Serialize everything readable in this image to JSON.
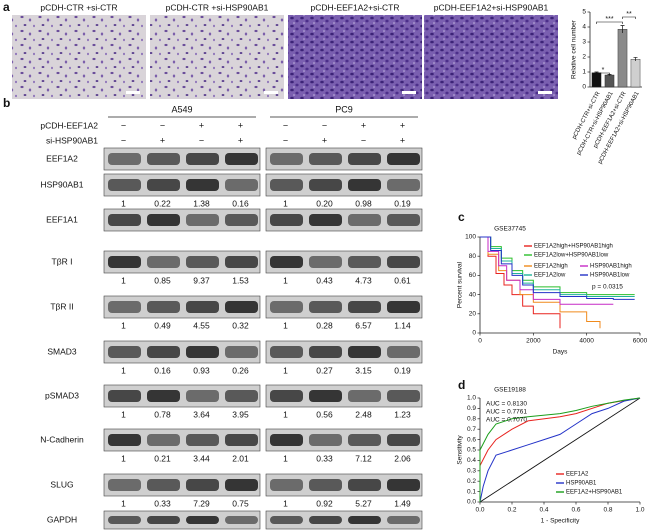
{
  "panel_labels": [
    "a",
    "b",
    "c",
    "d"
  ],
  "images": [
    {
      "label": "pCDH-CTR +si-CTR"
    },
    {
      "label": "pCDH-CTR +si-HSP90AB1"
    },
    {
      "label": "pCDH-EEF1A2+si-CTR"
    },
    {
      "label": "pCDH-EEF1A2+si-HSP90AB1"
    }
  ],
  "blots": {
    "cell_lines": [
      "A549",
      "PC9"
    ],
    "conditions": [
      {
        "label": "pCDH-EEF1A2",
        "signs": [
          "−",
          "−",
          "+",
          "+"
        ]
      },
      {
        "label": "si-HSP90AB1",
        "signs": [
          "−",
          "+",
          "−",
          "+"
        ]
      }
    ],
    "rows": [
      {
        "label": "EEF1A2"
      },
      {
        "label": "HSP90AB1",
        "quant": [
          [
            "1",
            "0.22",
            "1.38",
            "0.16"
          ],
          [
            "1",
            "0.20",
            "0.98",
            "0.19"
          ]
        ]
      },
      {
        "label": "EEF1A1"
      },
      {
        "label": "TβR I",
        "quant": [
          [
            "1",
            "0.85",
            "9.37",
            "1.53"
          ],
          [
            "1",
            "0.43",
            "4.73",
            "0.61"
          ]
        ]
      },
      {
        "label": "TβR II",
        "quant": [
          [
            "1",
            "0.49",
            "4.55",
            "0.32"
          ],
          [
            "1",
            "0.28",
            "6.57",
            "1.14"
          ]
        ]
      },
      {
        "label": "SMAD3",
        "quant": [
          [
            "1",
            "0.16",
            "0.93",
            "0.26"
          ],
          [
            "1",
            "0.27",
            "3.15",
            "0.19"
          ]
        ]
      },
      {
        "label": "pSMAD3",
        "quant": [
          [
            "1",
            "0.78",
            "3.64",
            "3.95"
          ],
          [
            "1",
            "0.56",
            "2.48",
            "1.23"
          ]
        ]
      },
      {
        "label": "N-Cadherin",
        "quant": [
          [
            "1",
            "0.21",
            "3.44",
            "2.01"
          ],
          [
            "1",
            "0.33",
            "7.12",
            "2.06"
          ]
        ]
      },
      {
        "label": "SLUG",
        "quant": [
          [
            "1",
            "0.33",
            "7.29",
            "0.75"
          ],
          [
            "1",
            "0.92",
            "5.27",
            "1.49"
          ]
        ]
      },
      {
        "label": "GAPDH"
      }
    ]
  },
  "chart_data": [
    {
      "type": "bar",
      "ylabel": "Relative cell number",
      "categories": [
        "pCDH-CTR+si-CTR",
        "pCDH-CTR+si-HSP90AB1",
        "pCDH-EEF1A2+si-CTR",
        "pCDH-EEF1A2+si-HSP90AB1"
      ],
      "values": [
        0.95,
        0.8,
        3.85,
        1.85
      ],
      "errors": [
        0.05,
        0.04,
        0.25,
        0.12
      ],
      "colors": [
        "#111111",
        "#555555",
        "#8a8a8a",
        "#cfcfcf"
      ],
      "ylim": [
        0,
        5
      ],
      "yticks": [
        0,
        1,
        2,
        3,
        4,
        5
      ],
      "annotations": [
        "*",
        "***",
        "**"
      ]
    },
    {
      "type": "line",
      "step": true,
      "title": "GSE37745",
      "xlabel": "Days",
      "ylabel": "Percent survival",
      "xlim": [
        0,
        6000
      ],
      "xticks": [
        0,
        2000,
        4000,
        6000
      ],
      "ylim": [
        0,
        100
      ],
      "yticks": [
        0,
        20,
        40,
        60,
        80,
        100
      ],
      "legend": "top-right",
      "annotations": [
        {
          "text": "p = 0.0315",
          "color": "#111111"
        }
      ],
      "series": [
        {
          "name": "EEF1A2high+HSP90AB1high",
          "color": "#e8231f",
          "x": [
            0,
            300,
            600,
            900,
            1200,
            1600,
            2000,
            2400,
            3000
          ],
          "values": [
            100,
            80,
            62,
            50,
            40,
            28,
            20,
            20,
            5
          ]
        },
        {
          "name": "EEF1A2low+HSP90AB1low",
          "color": "#2bbf2b",
          "x": [
            0,
            400,
            800,
            1200,
            1600,
            2000,
            3000,
            4000,
            5000,
            5800
          ],
          "values": [
            100,
            90,
            78,
            65,
            55,
            48,
            42,
            40,
            40,
            40
          ]
        },
        {
          "name": "EEF1A2high",
          "color": "#f08a1c",
          "x": [
            0,
            300,
            700,
            1000,
            1500,
            2000,
            3000,
            4000,
            4500
          ],
          "values": [
            100,
            82,
            65,
            55,
            40,
            32,
            22,
            12,
            5
          ]
        },
        {
          "name": "HSP90AB1high",
          "color": "#c62ac6",
          "x": [
            0,
            300,
            700,
            1000,
            1500,
            2000,
            3000,
            4000,
            5000
          ],
          "values": [
            100,
            85,
            70,
            55,
            45,
            35,
            30,
            30,
            30
          ]
        },
        {
          "name": "EEF1A2low",
          "color": "#1fb39a",
          "x": [
            0,
            400,
            800,
            1200,
            1600,
            2000,
            3000,
            4000,
            5000,
            5800
          ],
          "values": [
            100,
            88,
            75,
            62,
            52,
            45,
            40,
            38,
            38,
            38
          ]
        },
        {
          "name": "HSP90AB1low",
          "color": "#2433c8",
          "x": [
            0,
            400,
            800,
            1200,
            1600,
            2000,
            3000,
            4000,
            5000,
            5800
          ],
          "values": [
            100,
            86,
            72,
            60,
            50,
            42,
            38,
            36,
            35,
            35
          ]
        }
      ]
    },
    {
      "type": "line",
      "title": "GSE19188",
      "xlabel": "1 - Specificity",
      "ylabel": "Sensitivity",
      "reference_line": true,
      "xlim": [
        0,
        1
      ],
      "xticks": [
        {
          "value": 0,
          "label": "0.0"
        },
        0.2,
        0.4,
        0.6,
        0.8,
        {
          "value": 1,
          "label": "1.0"
        }
      ],
      "ylim": [
        0,
        1
      ],
      "yticks": [
        {
          "value": 0,
          "label": "0.0"
        },
        0.1,
        0.2,
        0.3,
        0.4,
        0.5,
        0.6,
        0.7,
        0.8,
        0.9,
        {
          "value": 1,
          "label": "1.0"
        }
      ],
      "legend": "bottom-right",
      "annotations": [
        {
          "text": "AUC = 0.8130",
          "color": "#1a9e1a"
        },
        {
          "text": "AUC = 0.7761",
          "color": "#e8231f"
        },
        {
          "text": "AUC = 0.7070",
          "color": "#2433c8"
        }
      ],
      "series": [
        {
          "name": "EEF1A2",
          "color": "#e8231f",
          "x": [
            0,
            0,
            0.05,
            0.1,
            0.2,
            0.3,
            0.5,
            0.6,
            0.8,
            1
          ],
          "values": [
            0,
            0.35,
            0.5,
            0.6,
            0.7,
            0.78,
            0.82,
            0.85,
            0.95,
            1
          ]
        },
        {
          "name": "HSP90AB1",
          "color": "#2433c8",
          "x": [
            0,
            0.02,
            0.05,
            0.1,
            0.2,
            0.3,
            0.4,
            0.5,
            0.6,
            0.7,
            0.8,
            0.9,
            1
          ],
          "values": [
            0,
            0.15,
            0.3,
            0.45,
            0.5,
            0.55,
            0.6,
            0.65,
            0.75,
            0.85,
            0.9,
            0.97,
            1
          ]
        },
        {
          "name": "EEF1A2+HSP90AB1",
          "color": "#1a9e1a",
          "x": [
            0,
            0,
            0.05,
            0.1,
            0.2,
            0.3,
            0.5,
            0.6,
            0.7,
            0.8,
            0.9,
            1
          ],
          "values": [
            0,
            0.5,
            0.65,
            0.75,
            0.8,
            0.82,
            0.85,
            0.88,
            0.92,
            0.95,
            0.98,
            1
          ]
        }
      ]
    }
  ]
}
